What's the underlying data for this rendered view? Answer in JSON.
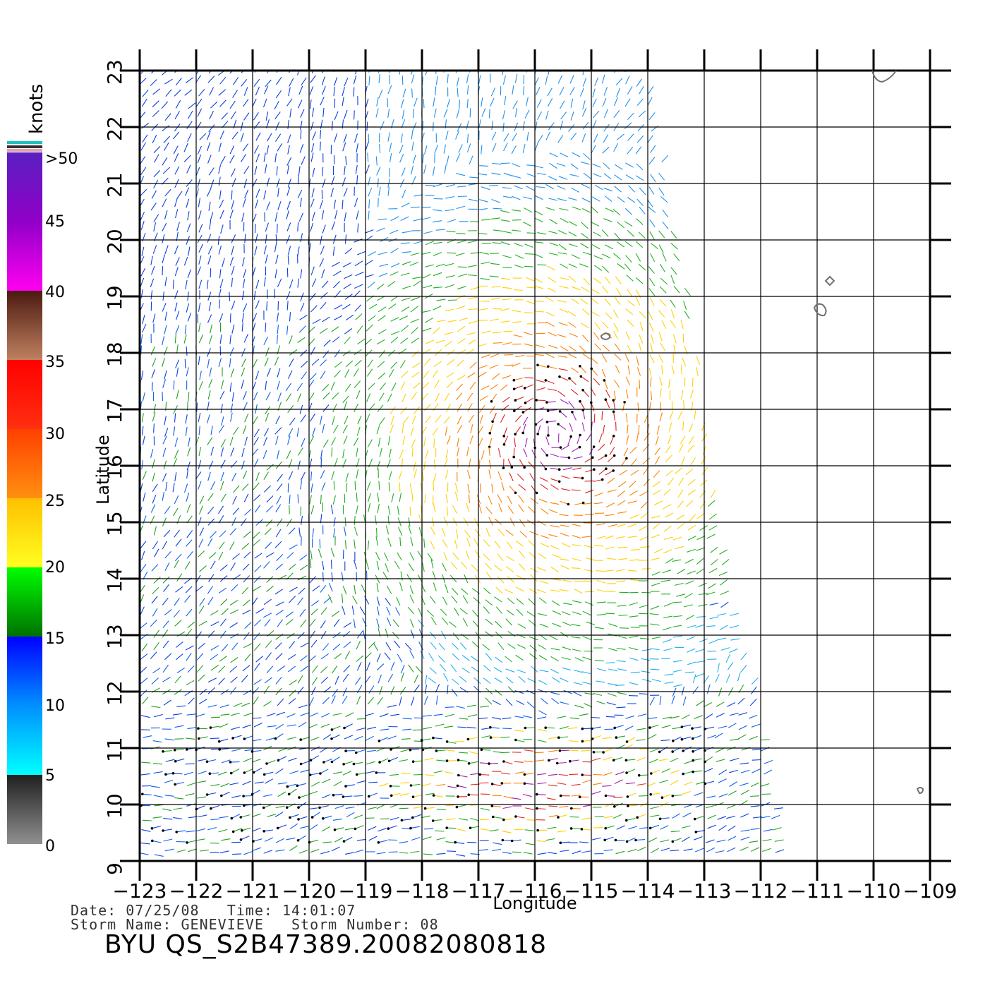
{
  "units_label": "knots",
  "legend": {
    "stops": [
      {
        "label": ">50",
        "color": "#6a1fc8"
      },
      {
        "label": "45",
        "color": "#b400c8"
      },
      {
        "label": "40",
        "color": "#e800e8"
      },
      {
        "label": "35",
        "color": "#b07050"
      },
      {
        "label": "30",
        "color": "#ff2020"
      },
      {
        "label": "25",
        "color": "#ff8000"
      },
      {
        "label": "20",
        "color": "#ffe000"
      },
      {
        "label": "15",
        "color": "#00e000"
      },
      {
        "label": "10",
        "color": "#0060ff"
      },
      {
        "label": "5",
        "color": "#00e8ff"
      },
      {
        "label": "0",
        "color": "#404040"
      }
    ]
  },
  "map": {
    "x_axis_title": "Longitude",
    "y_axis_title": "Latitude",
    "lon_ticks": [
      "−123",
      "−122",
      "−121",
      "−120",
      "−119",
      "−118",
      "−117",
      "−116",
      "−115",
      "−114",
      "−113",
      "−112",
      "−111",
      "−110",
      "−109"
    ],
    "lat_ticks": [
      "9",
      "10",
      "11",
      "12",
      "13",
      "14",
      "15",
      "16",
      "17",
      "18",
      "19",
      "20",
      "21",
      "22",
      "23"
    ],
    "lon_range": [
      -123,
      -108.4
    ],
    "lat_range": [
      9,
      23
    ]
  },
  "footer": {
    "date_line": "Date: 07/25/08   Time: 14:01:07",
    "storm_line": "Storm Name: GENEVIEVE   Storm Number: 08",
    "file_id": "BYU QS_S2B47389.20082080818"
  }
}
